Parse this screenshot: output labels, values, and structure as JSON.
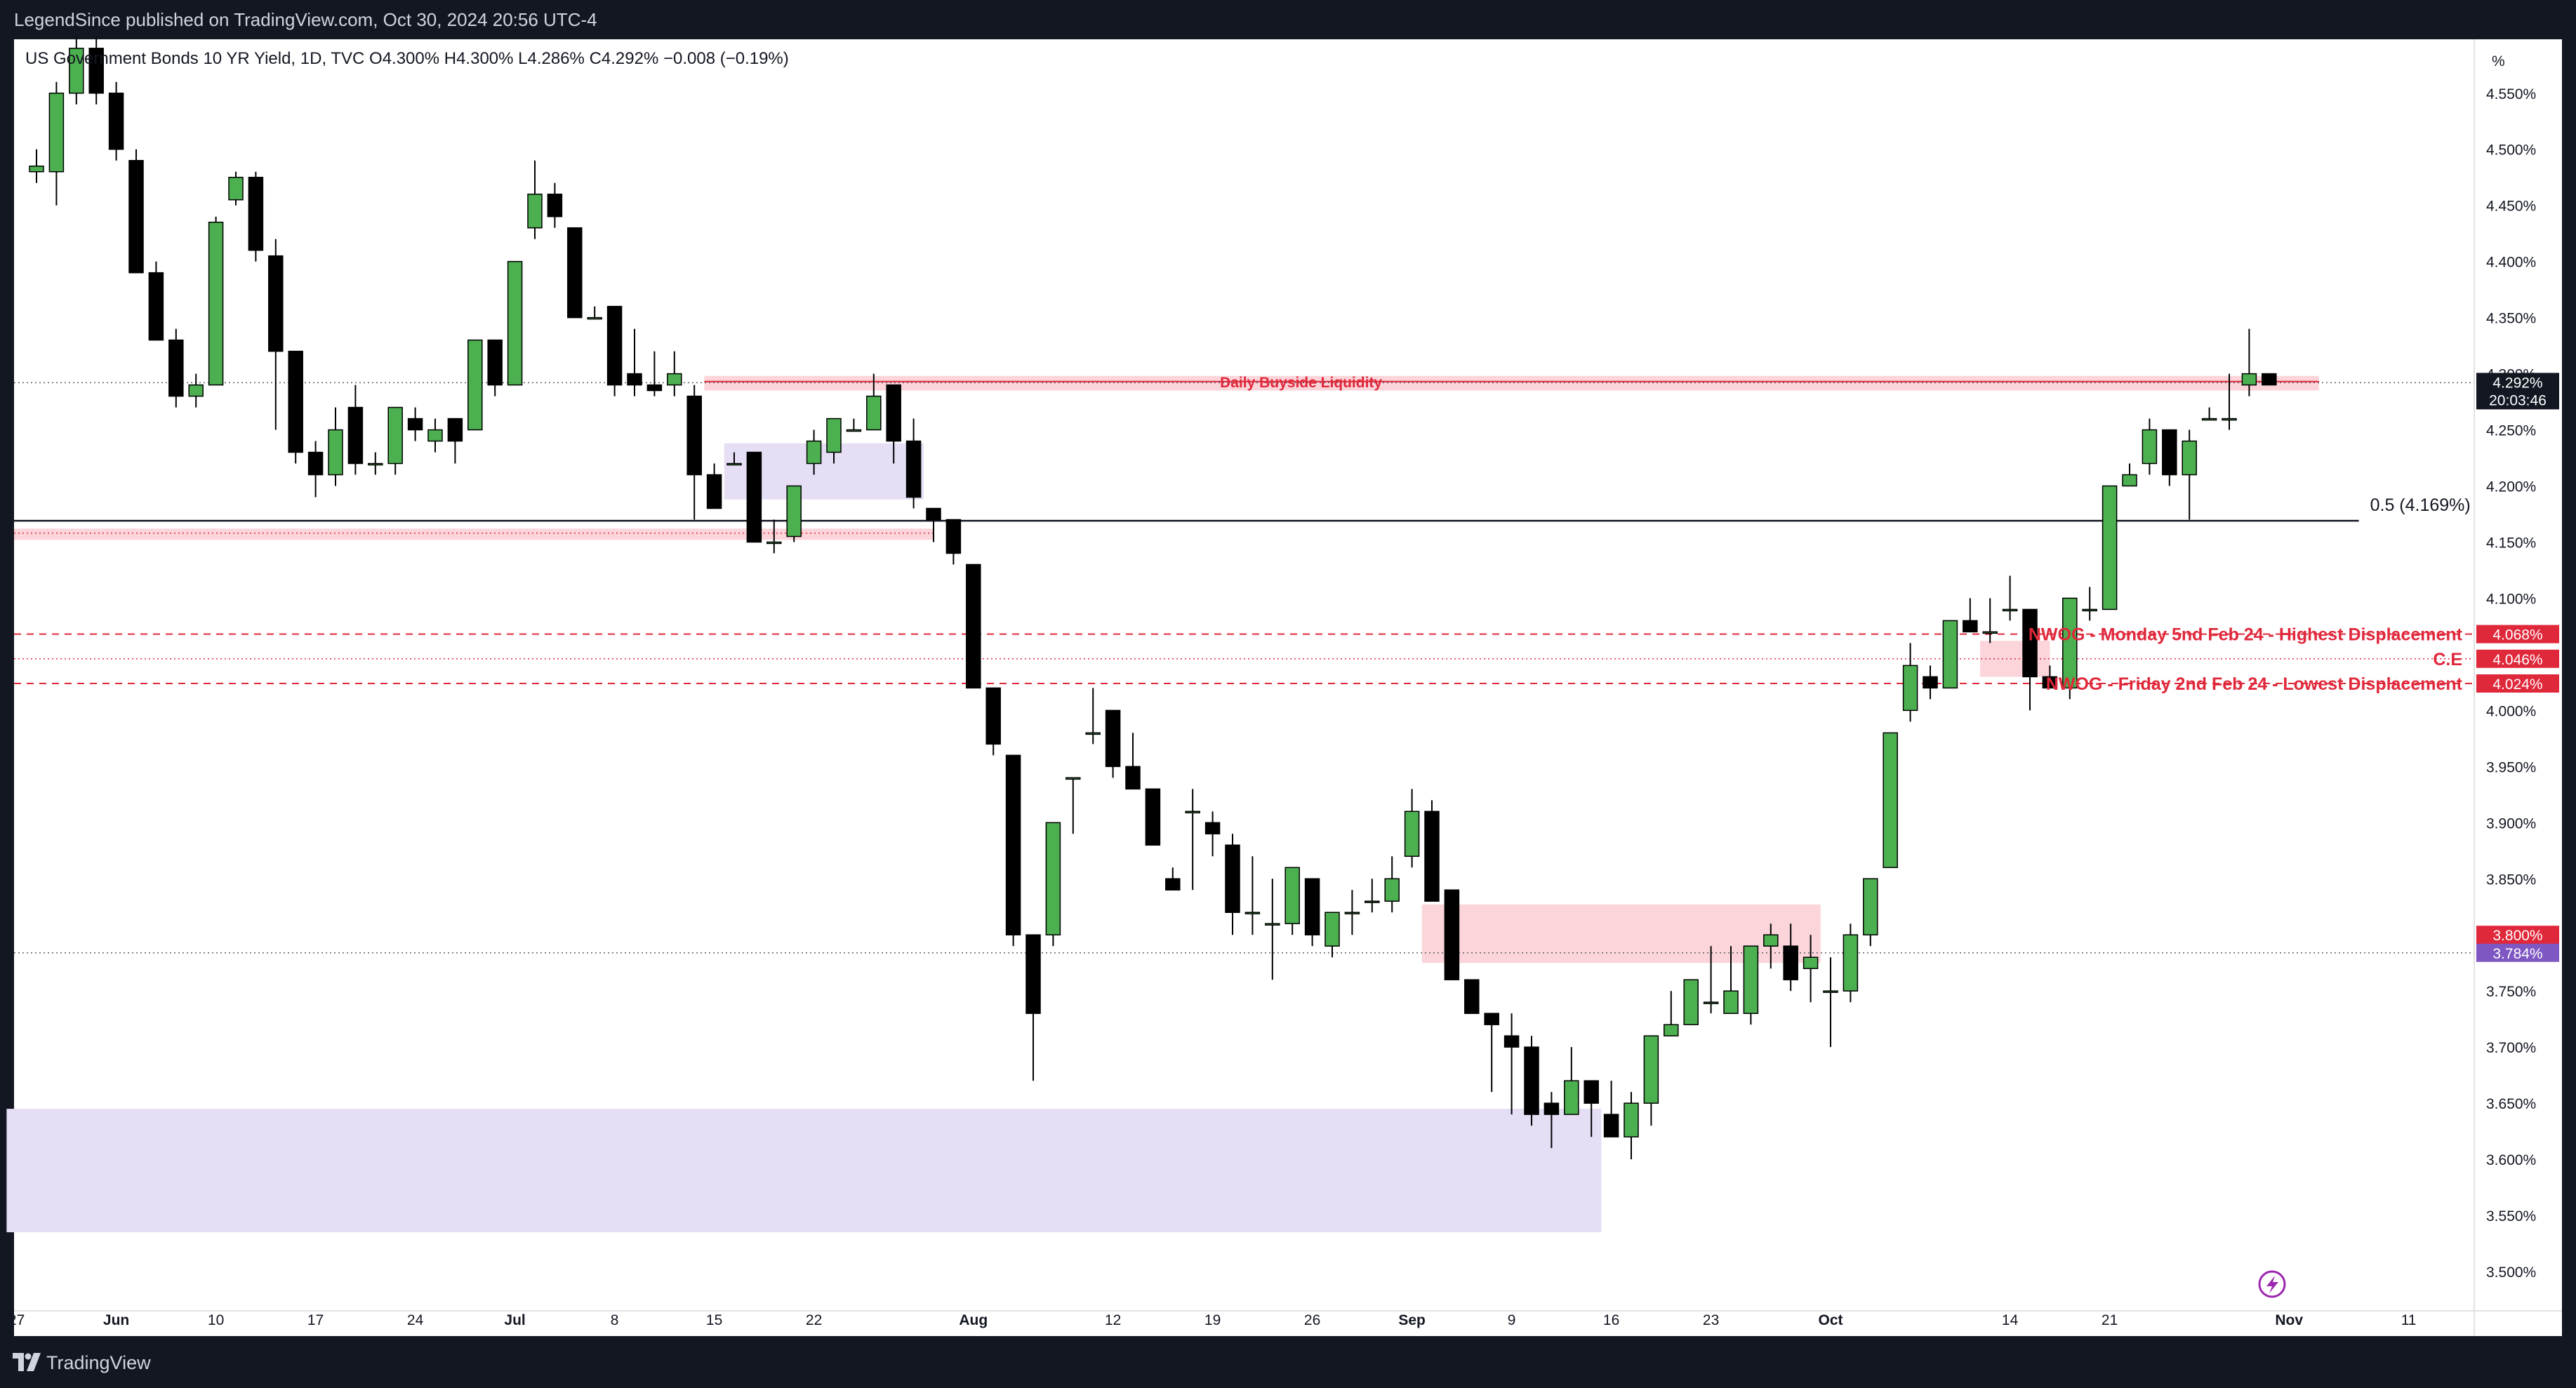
{
  "header": {
    "publisher": "LegendSince published on TradingView.com, Oct 30, 2024 20:56 UTC-4"
  },
  "footer": {
    "brand": "TradingView"
  },
  "symbol_legend": {
    "text": "US Government Bonds 10 YR Yield, 1D, TVC  O4.300%  H4.300%  L4.286%  C4.292%  −0.008 (−0.19%)"
  },
  "colors": {
    "up": "#4caf50",
    "down": "#000000",
    "annotation_red": "#e0283b",
    "zone_pink": "#fbd5da",
    "zone_lavender": "#e5def5",
    "label_purple": "#7e57c2",
    "price_label": "#131722"
  },
  "icons": [
    "tradingview-logo-icon",
    "lightning-icon"
  ],
  "chart_data": {
    "type": "candlestick",
    "title": "US Government Bonds 10 YR Yield, 1D, TVC",
    "ohlc_header": {
      "open": "4.300%",
      "high": "4.300%",
      "low": "4.286%",
      "close": "4.292%",
      "change": "−0.008 (−0.19%)"
    },
    "y_unit": "%",
    "ylim": [
      3.465,
      4.598
    ],
    "y_ticks": [
      "4.550%",
      "4.500%",
      "4.450%",
      "4.400%",
      "4.350%",
      "4.300%",
      "4.250%",
      "4.200%",
      "4.150%",
      "4.100%",
      "4.050%",
      "4.000%",
      "3.950%",
      "3.900%",
      "3.850%",
      "3.800%",
      "3.750%",
      "3.700%",
      "3.650%",
      "3.600%",
      "3.550%",
      "3.500%"
    ],
    "x_ticks": [
      {
        "label": "27",
        "bar": -1
      },
      {
        "label": "Jun",
        "bar": 4
      },
      {
        "label": "10",
        "bar": 9
      },
      {
        "label": "17",
        "bar": 14
      },
      {
        "label": "24",
        "bar": 19
      },
      {
        "label": "Jul",
        "bar": 24
      },
      {
        "label": "8",
        "bar": 29
      },
      {
        "label": "15",
        "bar": 34
      },
      {
        "label": "22",
        "bar": 39
      },
      {
        "label": "Aug",
        "bar": 47
      },
      {
        "label": "12",
        "bar": 54
      },
      {
        "label": "19",
        "bar": 59
      },
      {
        "label": "26",
        "bar": 64
      },
      {
        "label": "Sep",
        "bar": 69
      },
      {
        "label": "9",
        "bar": 74
      },
      {
        "label": "16",
        "bar": 79
      },
      {
        "label": "23",
        "bar": 84
      },
      {
        "label": "Oct",
        "bar": 90
      },
      {
        "label": "14",
        "bar": 99
      },
      {
        "label": "21",
        "bar": 104
      },
      {
        "label": "Nov",
        "bar": 113
      },
      {
        "label": "11",
        "bar": 119
      }
    ],
    "candles": [
      [
        4.48,
        4.5,
        4.47,
        4.485
      ],
      [
        4.48,
        4.56,
        4.45,
        4.55
      ],
      [
        4.55,
        4.6,
        4.54,
        4.59
      ],
      [
        4.59,
        4.6,
        4.54,
        4.55
      ],
      [
        4.55,
        4.56,
        4.49,
        4.5
      ],
      [
        4.49,
        4.5,
        4.39,
        4.39
      ],
      [
        4.39,
        4.4,
        4.33,
        4.33
      ],
      [
        4.33,
        4.34,
        4.27,
        4.28
      ],
      [
        4.28,
        4.3,
        4.27,
        4.29
      ],
      [
        4.29,
        4.44,
        4.29,
        4.435
      ],
      [
        4.455,
        4.48,
        4.45,
        4.475
      ],
      [
        4.475,
        4.48,
        4.4,
        4.41
      ],
      [
        4.405,
        4.42,
        4.25,
        4.32
      ],
      [
        4.32,
        4.32,
        4.22,
        4.23
      ],
      [
        4.23,
        4.24,
        4.19,
        4.21
      ],
      [
        4.21,
        4.27,
        4.2,
        4.25
      ],
      [
        4.27,
        4.29,
        4.21,
        4.22
      ],
      [
        4.22,
        4.23,
        4.21,
        4.22
      ],
      [
        4.22,
        4.27,
        4.21,
        4.27
      ],
      [
        4.26,
        4.27,
        4.24,
        4.25
      ],
      [
        4.24,
        4.26,
        4.23,
        4.25
      ],
      [
        4.26,
        4.26,
        4.22,
        4.24
      ],
      [
        4.25,
        4.33,
        4.25,
        4.33
      ],
      [
        4.33,
        4.33,
        4.28,
        4.29
      ],
      [
        4.29,
        4.4,
        4.29,
        4.4
      ],
      [
        4.43,
        4.49,
        4.42,
        4.46
      ],
      [
        4.46,
        4.47,
        4.43,
        4.44
      ],
      [
        4.43,
        4.43,
        4.35,
        4.35
      ],
      [
        4.35,
        4.36,
        4.35,
        4.35
      ],
      [
        4.36,
        4.36,
        4.28,
        4.29
      ],
      [
        4.3,
        4.34,
        4.28,
        4.29
      ],
      [
        4.29,
        4.32,
        4.28,
        4.285
      ],
      [
        4.29,
        4.32,
        4.28,
        4.3
      ],
      [
        4.28,
        4.29,
        4.17,
        4.21
      ],
      [
        4.21,
        4.22,
        4.18,
        4.18
      ],
      [
        4.22,
        4.23,
        4.22,
        4.22
      ],
      [
        4.23,
        4.23,
        4.15,
        4.15
      ],
      [
        4.15,
        4.17,
        4.14,
        4.15
      ],
      [
        4.155,
        4.2,
        4.15,
        4.2
      ],
      [
        4.22,
        4.25,
        4.21,
        4.24
      ],
      [
        4.23,
        4.26,
        4.22,
        4.26
      ],
      [
        4.25,
        4.26,
        4.25,
        4.25
      ],
      [
        4.25,
        4.3,
        4.25,
        4.28
      ],
      [
        4.29,
        4.29,
        4.22,
        4.24
      ],
      [
        4.24,
        4.26,
        4.18,
        4.19
      ],
      [
        4.18,
        4.18,
        4.15,
        4.17
      ],
      [
        4.17,
        4.17,
        4.13,
        4.14
      ],
      [
        4.13,
        4.13,
        4.02,
        4.02
      ],
      [
        4.02,
        4.02,
        3.96,
        3.97
      ],
      [
        3.96,
        3.96,
        3.79,
        3.8
      ],
      [
        3.8,
        3.8,
        3.67,
        3.73
      ],
      [
        3.8,
        3.9,
        3.79,
        3.9
      ],
      [
        3.94,
        3.94,
        3.89,
        3.94
      ],
      [
        3.98,
        4.02,
        3.97,
        3.98
      ],
      [
        4.0,
        4.0,
        3.94,
        3.95
      ],
      [
        3.95,
        3.98,
        3.93,
        3.93
      ],
      [
        3.93,
        3.93,
        3.88,
        3.88
      ],
      [
        3.85,
        3.86,
        3.84,
        3.84
      ],
      [
        3.91,
        3.93,
        3.84,
        3.91
      ],
      [
        3.9,
        3.91,
        3.87,
        3.89
      ],
      [
        3.88,
        3.89,
        3.8,
        3.82
      ],
      [
        3.82,
        3.87,
        3.8,
        3.82
      ],
      [
        3.81,
        3.85,
        3.76,
        3.81
      ],
      [
        3.81,
        3.86,
        3.8,
        3.86
      ],
      [
        3.85,
        3.85,
        3.79,
        3.8
      ],
      [
        3.79,
        3.82,
        3.78,
        3.82
      ],
      [
        3.82,
        3.84,
        3.8,
        3.82
      ],
      [
        3.83,
        3.85,
        3.82,
        3.83
      ],
      [
        3.83,
        3.87,
        3.82,
        3.85
      ],
      [
        3.87,
        3.93,
        3.86,
        3.91
      ],
      [
        3.91,
        3.92,
        3.84,
        3.83
      ],
      [
        3.84,
        3.84,
        3.76,
        3.76
      ],
      [
        3.76,
        3.76,
        3.73,
        3.73
      ],
      [
        3.73,
        3.73,
        3.66,
        3.72
      ],
      [
        3.71,
        3.73,
        3.64,
        3.7
      ],
      [
        3.7,
        3.71,
        3.63,
        3.64
      ],
      [
        3.65,
        3.66,
        3.61,
        3.64
      ],
      [
        3.64,
        3.7,
        3.64,
        3.67
      ],
      [
        3.67,
        3.67,
        3.62,
        3.65
      ],
      [
        3.64,
        3.67,
        3.62,
        3.62
      ],
      [
        3.62,
        3.66,
        3.6,
        3.65
      ],
      [
        3.65,
        3.71,
        3.63,
        3.71
      ],
      [
        3.71,
        3.75,
        3.71,
        3.72
      ],
      [
        3.72,
        3.76,
        3.72,
        3.76
      ],
      [
        3.74,
        3.79,
        3.73,
        3.74
      ],
      [
        3.73,
        3.79,
        3.73,
        3.75
      ],
      [
        3.73,
        3.79,
        3.72,
        3.79
      ],
      [
        3.79,
        3.81,
        3.77,
        3.8
      ],
      [
        3.79,
        3.81,
        3.75,
        3.76
      ],
      [
        3.77,
        3.8,
        3.74,
        3.78
      ],
      [
        3.75,
        3.78,
        3.7,
        3.75
      ],
      [
        3.75,
        3.81,
        3.74,
        3.8
      ],
      [
        3.8,
        3.85,
        3.79,
        3.85
      ],
      [
        3.86,
        3.97,
        3.86,
        3.98
      ],
      [
        4.0,
        4.06,
        3.99,
        4.04
      ],
      [
        4.03,
        4.04,
        4.01,
        4.02
      ],
      [
        4.02,
        4.08,
        4.02,
        4.08
      ],
      [
        4.08,
        4.1,
        4.07,
        4.07
      ],
      [
        4.07,
        4.1,
        4.06,
        4.07
      ],
      [
        4.09,
        4.12,
        4.08,
        4.09
      ],
      [
        4.09,
        4.09,
        4.0,
        4.03
      ],
      [
        4.03,
        4.04,
        4.02,
        4.02
      ],
      [
        4.02,
        4.1,
        4.01,
        4.1
      ],
      [
        4.09,
        4.11,
        4.08,
        4.09
      ],
      [
        4.09,
        4.2,
        4.09,
        4.2
      ],
      [
        4.2,
        4.22,
        4.2,
        4.21
      ],
      [
        4.22,
        4.26,
        4.21,
        4.25
      ],
      [
        4.25,
        4.25,
        4.2,
        4.21
      ],
      [
        4.21,
        4.25,
        4.17,
        4.24
      ],
      [
        4.26,
        4.27,
        4.26,
        4.26
      ],
      [
        4.26,
        4.3,
        4.25,
        4.26
      ],
      [
        4.29,
        4.34,
        4.28,
        4.3
      ],
      [
        4.3,
        4.3,
        4.29,
        4.29
      ]
    ],
    "levels": [
      {
        "name": "Daily Buyside Liquidity",
        "price": 4.293,
        "style": "zone-line"
      },
      {
        "name": "0.5 (4.169%)",
        "price": 4.169,
        "style": "solid"
      },
      {
        "name": "NWOG - Monday 5nd Feb 24 - Highest Displacement",
        "price": 4.068,
        "label": "4.068%"
      },
      {
        "name": "C.E",
        "price": 4.046,
        "label": "4.046%"
      },
      {
        "name": "NWOG - Friday 2nd Feb 24 - Lowest Displacement",
        "price": 4.024,
        "label": "4.024%"
      },
      {
        "name": "level-3.800",
        "price": 3.8,
        "label": "3.800%"
      },
      {
        "name": "level-3.784",
        "price": 3.784,
        "label": "3.784%"
      }
    ],
    "last_price": {
      "value": "4.292%",
      "countdown": "20:03:46"
    }
  }
}
